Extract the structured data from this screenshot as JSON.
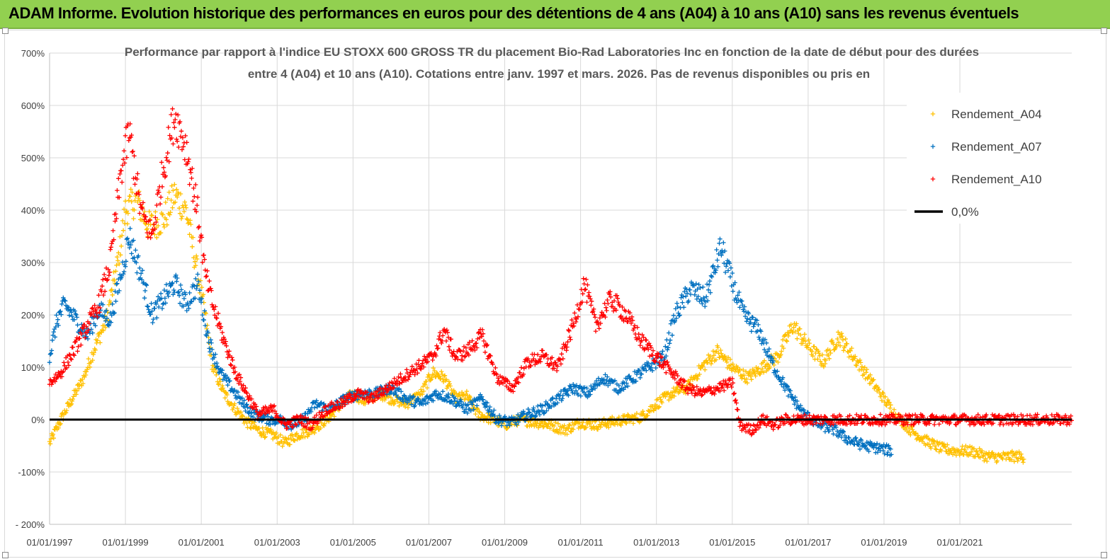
{
  "header": {
    "title": "ADAM Informe. Evolution historique des performances en euros pour des détentions de 4 ans (A04) à 10 ans (A10) sans les revenus éventuels"
  },
  "colors": {
    "banner": "#92d050",
    "a04": "#ffc000",
    "a07": "#0070c0",
    "a10": "#ff0000",
    "zero": "#000000",
    "grid": "#d9d9d9"
  },
  "chart_data": {
    "type": "scatter",
    "title": "Performance par rapport à l'indice EU STOXX 600 GROSS TR  du placement Bio-Rad Laboratories Inc en fonction de la date de début pour des durées entre 4 (A04) et 10 ans (A10).  Cotations entre janv. 1997 et mars. 2026.  Pas de  revenus disponibles ou pris en",
    "title_lines": [
      "Performance par rapport à l'indice EU STOXX 600 GROSS TR  du placement Bio-Rad Laboratories Inc en fonction de la date de début pour des durées",
      "entre 4 (A04) et 10 ans (A10).  Cotations entre janv. 1997 et mars. 2026.  Pas de  revenus disponibles ou pris en"
    ],
    "xlabel": "",
    "ylabel": "",
    "xlim": [
      1997.0,
      2023.95
    ],
    "ylim": [
      -200,
      700
    ],
    "x_ticks": [
      1997,
      1999,
      2001,
      2003,
      2005,
      2007,
      2009,
      2011,
      2013,
      2015,
      2017,
      2019,
      2021
    ],
    "x_tick_labels": [
      "01/01/1997",
      "01/01/1999",
      "01/01/2001",
      "01/01/2003",
      "01/01/2005",
      "01/01/2007",
      "01/01/2009",
      "01/01/2011",
      "01/01/2013",
      "01/01/2015",
      "01/01/2017",
      "01/01/2019",
      "01/01/2021"
    ],
    "y_ticks": [
      700,
      600,
      500,
      400,
      300,
      200,
      100,
      0,
      -100,
      -200
    ],
    "y_tick_labels": [
      "700%",
      "600%",
      "500%",
      "400%",
      "300%",
      "200%",
      "100%",
      "0%",
      "-100%",
      "- 200%"
    ],
    "grid": true,
    "legend_position": "top-right",
    "legend": [
      "Rendement_A04",
      "Rendement_A07",
      "Rendement_A10",
      "0,0%"
    ],
    "series": [
      {
        "name": "Rendement_A04",
        "color": "#ffc000",
        "points": [
          [
            1997.0,
            -45
          ],
          [
            1997.3,
            0
          ],
          [
            1997.6,
            40
          ],
          [
            1997.9,
            80
          ],
          [
            1998.2,
            140
          ],
          [
            1998.5,
            190
          ],
          [
            1998.8,
            300
          ],
          [
            1999.0,
            400
          ],
          [
            1999.3,
            420
          ],
          [
            1999.6,
            370
          ],
          [
            2000.0,
            380
          ],
          [
            2000.3,
            430
          ],
          [
            2000.6,
            400
          ],
          [
            2000.9,
            280
          ],
          [
            2001.1,
            200
          ],
          [
            2001.3,
            100
          ],
          [
            2001.6,
            50
          ],
          [
            2001.9,
            20
          ],
          [
            2002.2,
            -5
          ],
          [
            2002.5,
            -20
          ],
          [
            2002.9,
            -30
          ],
          [
            2003.2,
            -45
          ],
          [
            2003.5,
            -30
          ],
          [
            2003.9,
            -20
          ],
          [
            2004.3,
            0
          ],
          [
            2004.7,
            30
          ],
          [
            2005.0,
            50
          ],
          [
            2005.3,
            35
          ],
          [
            2005.7,
            50
          ],
          [
            2006.0,
            40
          ],
          [
            2006.4,
            30
          ],
          [
            2006.8,
            50
          ],
          [
            2007.1,
            90
          ],
          [
            2007.4,
            80
          ],
          [
            2007.7,
            40
          ],
          [
            2008.0,
            45
          ],
          [
            2008.3,
            10
          ],
          [
            2008.7,
            0
          ],
          [
            2009.0,
            -10
          ],
          [
            2009.4,
            0
          ],
          [
            2009.8,
            -5
          ],
          [
            2010.2,
            -10
          ],
          [
            2010.6,
            -20
          ],
          [
            2011.0,
            -5
          ],
          [
            2011.4,
            -10
          ],
          [
            2011.8,
            -5
          ],
          [
            2012.2,
            0
          ],
          [
            2012.6,
            5
          ],
          [
            2013.0,
            30
          ],
          [
            2013.4,
            50
          ],
          [
            2013.8,
            60
          ],
          [
            2014.2,
            100
          ],
          [
            2014.6,
            130
          ],
          [
            2015.0,
            100
          ],
          [
            2015.4,
            80
          ],
          [
            2015.8,
            100
          ],
          [
            2016.2,
            120
          ],
          [
            2016.6,
            180
          ],
          [
            2017.0,
            140
          ],
          [
            2017.4,
            110
          ],
          [
            2017.8,
            160
          ],
          [
            2018.2,
            120
          ],
          [
            2018.6,
            80
          ],
          [
            2019.0,
            40
          ],
          [
            2019.3,
            10
          ],
          [
            2019.7,
            -20
          ],
          [
            2020.1,
            -40
          ],
          [
            2020.5,
            -55
          ],
          [
            2020.9,
            -60
          ],
          [
            2021.3,
            -60
          ],
          [
            2021.7,
            -70
          ],
          [
            2022.1,
            -72
          ],
          [
            2022.5,
            -70
          ],
          [
            2022.7,
            -72
          ]
        ]
      },
      {
        "name": "Rendement_A07",
        "color": "#0070c0",
        "points": [
          [
            1997.0,
            120
          ],
          [
            1997.2,
            190
          ],
          [
            1997.4,
            220
          ],
          [
            1997.7,
            190
          ],
          [
            1998.0,
            160
          ],
          [
            1998.3,
            210
          ],
          [
            1998.6,
            190
          ],
          [
            1998.9,
            280
          ],
          [
            1999.1,
            350
          ],
          [
            1999.4,
            280
          ],
          [
            1999.7,
            200
          ],
          [
            2000.0,
            230
          ],
          [
            2000.3,
            260
          ],
          [
            2000.6,
            220
          ],
          [
            2000.9,
            260
          ],
          [
            2001.2,
            150
          ],
          [
            2001.5,
            90
          ],
          [
            2001.8,
            60
          ],
          [
            2002.1,
            30
          ],
          [
            2002.4,
            10
          ],
          [
            2002.8,
            0
          ],
          [
            2003.1,
            0
          ],
          [
            2003.4,
            -10
          ],
          [
            2003.7,
            0
          ],
          [
            2004.0,
            30
          ],
          [
            2004.4,
            20
          ],
          [
            2004.8,
            40
          ],
          [
            2005.2,
            50
          ],
          [
            2005.6,
            50
          ],
          [
            2006.0,
            60
          ],
          [
            2006.4,
            40
          ],
          [
            2006.8,
            30
          ],
          [
            2007.2,
            50
          ],
          [
            2007.6,
            40
          ],
          [
            2008.0,
            20
          ],
          [
            2008.4,
            40
          ],
          [
            2008.8,
            0
          ],
          [
            2009.2,
            -5
          ],
          [
            2009.6,
            10
          ],
          [
            2010.0,
            20
          ],
          [
            2010.4,
            40
          ],
          [
            2010.8,
            60
          ],
          [
            2011.2,
            50
          ],
          [
            2011.6,
            80
          ],
          [
            2012.0,
            60
          ],
          [
            2012.4,
            80
          ],
          [
            2012.8,
            100
          ],
          [
            2013.2,
            120
          ],
          [
            2013.5,
            200
          ],
          [
            2013.9,
            250
          ],
          [
            2014.3,
            230
          ],
          [
            2014.7,
            330
          ],
          [
            2015.0,
            260
          ],
          [
            2015.3,
            200
          ],
          [
            2015.7,
            170
          ],
          [
            2016.1,
            100
          ],
          [
            2016.5,
            50
          ],
          [
            2016.9,
            10
          ],
          [
            2017.3,
            -10
          ],
          [
            2017.7,
            -20
          ],
          [
            2018.1,
            -40
          ],
          [
            2018.5,
            -50
          ],
          [
            2018.9,
            -55
          ],
          [
            2019.2,
            -60
          ]
        ]
      },
      {
        "name": "Rendement_A10",
        "color": "#ff0000",
        "points": [
          [
            1997.0,
            70
          ],
          [
            1997.3,
            90
          ],
          [
            1997.7,
            140
          ],
          [
            1998.0,
            180
          ],
          [
            1998.3,
            220
          ],
          [
            1998.6,
            300
          ],
          [
            1998.9,
            480
          ],
          [
            1999.1,
            550
          ],
          [
            1999.4,
            400
          ],
          [
            1999.7,
            350
          ],
          [
            2000.0,
            480
          ],
          [
            2000.3,
            580
          ],
          [
            2000.6,
            520
          ],
          [
            2000.9,
            400
          ],
          [
            2001.1,
            280
          ],
          [
            2001.3,
            220
          ],
          [
            2001.6,
            150
          ],
          [
            2001.9,
            90
          ],
          [
            2002.2,
            50
          ],
          [
            2002.5,
            10
          ],
          [
            2002.9,
            20
          ],
          [
            2003.2,
            -10
          ],
          [
            2003.6,
            0
          ],
          [
            2003.9,
            -10
          ],
          [
            2004.3,
            20
          ],
          [
            2004.7,
            30
          ],
          [
            2005.1,
            50
          ],
          [
            2005.5,
            40
          ],
          [
            2005.9,
            60
          ],
          [
            2006.3,
            80
          ],
          [
            2006.7,
            100
          ],
          [
            2007.1,
            120
          ],
          [
            2007.4,
            170
          ],
          [
            2007.7,
            120
          ],
          [
            2008.0,
            130
          ],
          [
            2008.4,
            160
          ],
          [
            2008.8,
            80
          ],
          [
            2009.2,
            60
          ],
          [
            2009.6,
            110
          ],
          [
            2010.0,
            120
          ],
          [
            2010.4,
            100
          ],
          [
            2010.8,
            180
          ],
          [
            2011.1,
            260
          ],
          [
            2011.4,
            180
          ],
          [
            2011.8,
            230
          ],
          [
            2012.2,
            200
          ],
          [
            2012.6,
            150
          ],
          [
            2013.0,
            120
          ],
          [
            2013.4,
            90
          ],
          [
            2013.8,
            60
          ],
          [
            2014.2,
            50
          ],
          [
            2014.6,
            60
          ],
          [
            2015.0,
            70
          ],
          [
            2015.2,
            -10
          ],
          [
            2015.5,
            -20
          ],
          [
            2015.8,
            0
          ],
          [
            2016.1,
            -10
          ],
          [
            2016.4,
            0
          ],
          [
            2017.0,
            0
          ],
          [
            2018.0,
            0
          ],
          [
            2019.0,
            0
          ],
          [
            2020.0,
            0
          ],
          [
            2021.0,
            0
          ],
          [
            2022.0,
            0
          ],
          [
            2023.0,
            0
          ],
          [
            2023.95,
            0
          ]
        ]
      },
      {
        "name": "0,0%",
        "color": "#000000",
        "points": [
          [
            1997.0,
            0
          ],
          [
            2023.95,
            0
          ]
        ]
      }
    ]
  }
}
